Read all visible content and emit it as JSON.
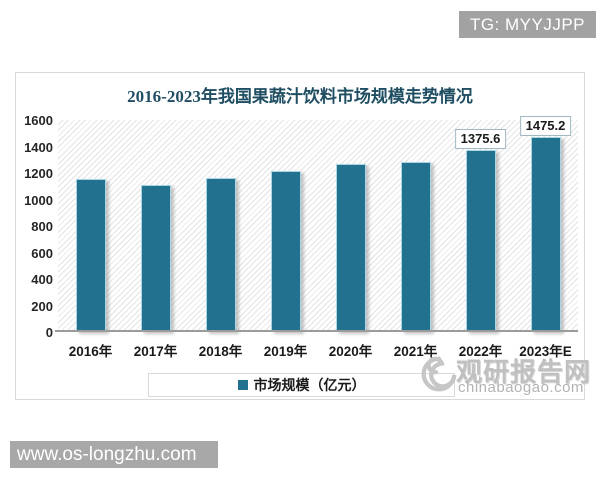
{
  "overlays": {
    "tg_badge": "TG: MYYJJPP",
    "site_bar": "www.os-longzhu.com"
  },
  "watermark": {
    "logo": "spiral-logo",
    "name": "观研报告网",
    "domain": "chinabaogao.com"
  },
  "chart_data": {
    "type": "bar",
    "title": "2016-2023年我国果蔬汁饮料市场规模走势情况",
    "categories": [
      "2016年",
      "2017年",
      "2018年",
      "2019年",
      "2020年",
      "2021年",
      "2022年",
      "2023年E"
    ],
    "values": [
      1155,
      1110,
      1165,
      1215,
      1265,
      1285,
      1375.6,
      1475.2
    ],
    "point_labels": [
      "",
      "",
      "",
      "",
      "",
      "",
      "1375.6",
      "1475.2"
    ],
    "legend_label": "市场规模（亿元）",
    "legend_position": "bottom",
    "xlabel": "",
    "ylabel": "",
    "ylim": [
      0,
      1600
    ],
    "yticks": [
      0,
      200,
      400,
      600,
      800,
      1000,
      1200,
      1400,
      1600
    ],
    "grid": false,
    "plot_background": "diagonal-hatch",
    "bar_color": "#21718f",
    "title_color": "#1f4e63"
  }
}
